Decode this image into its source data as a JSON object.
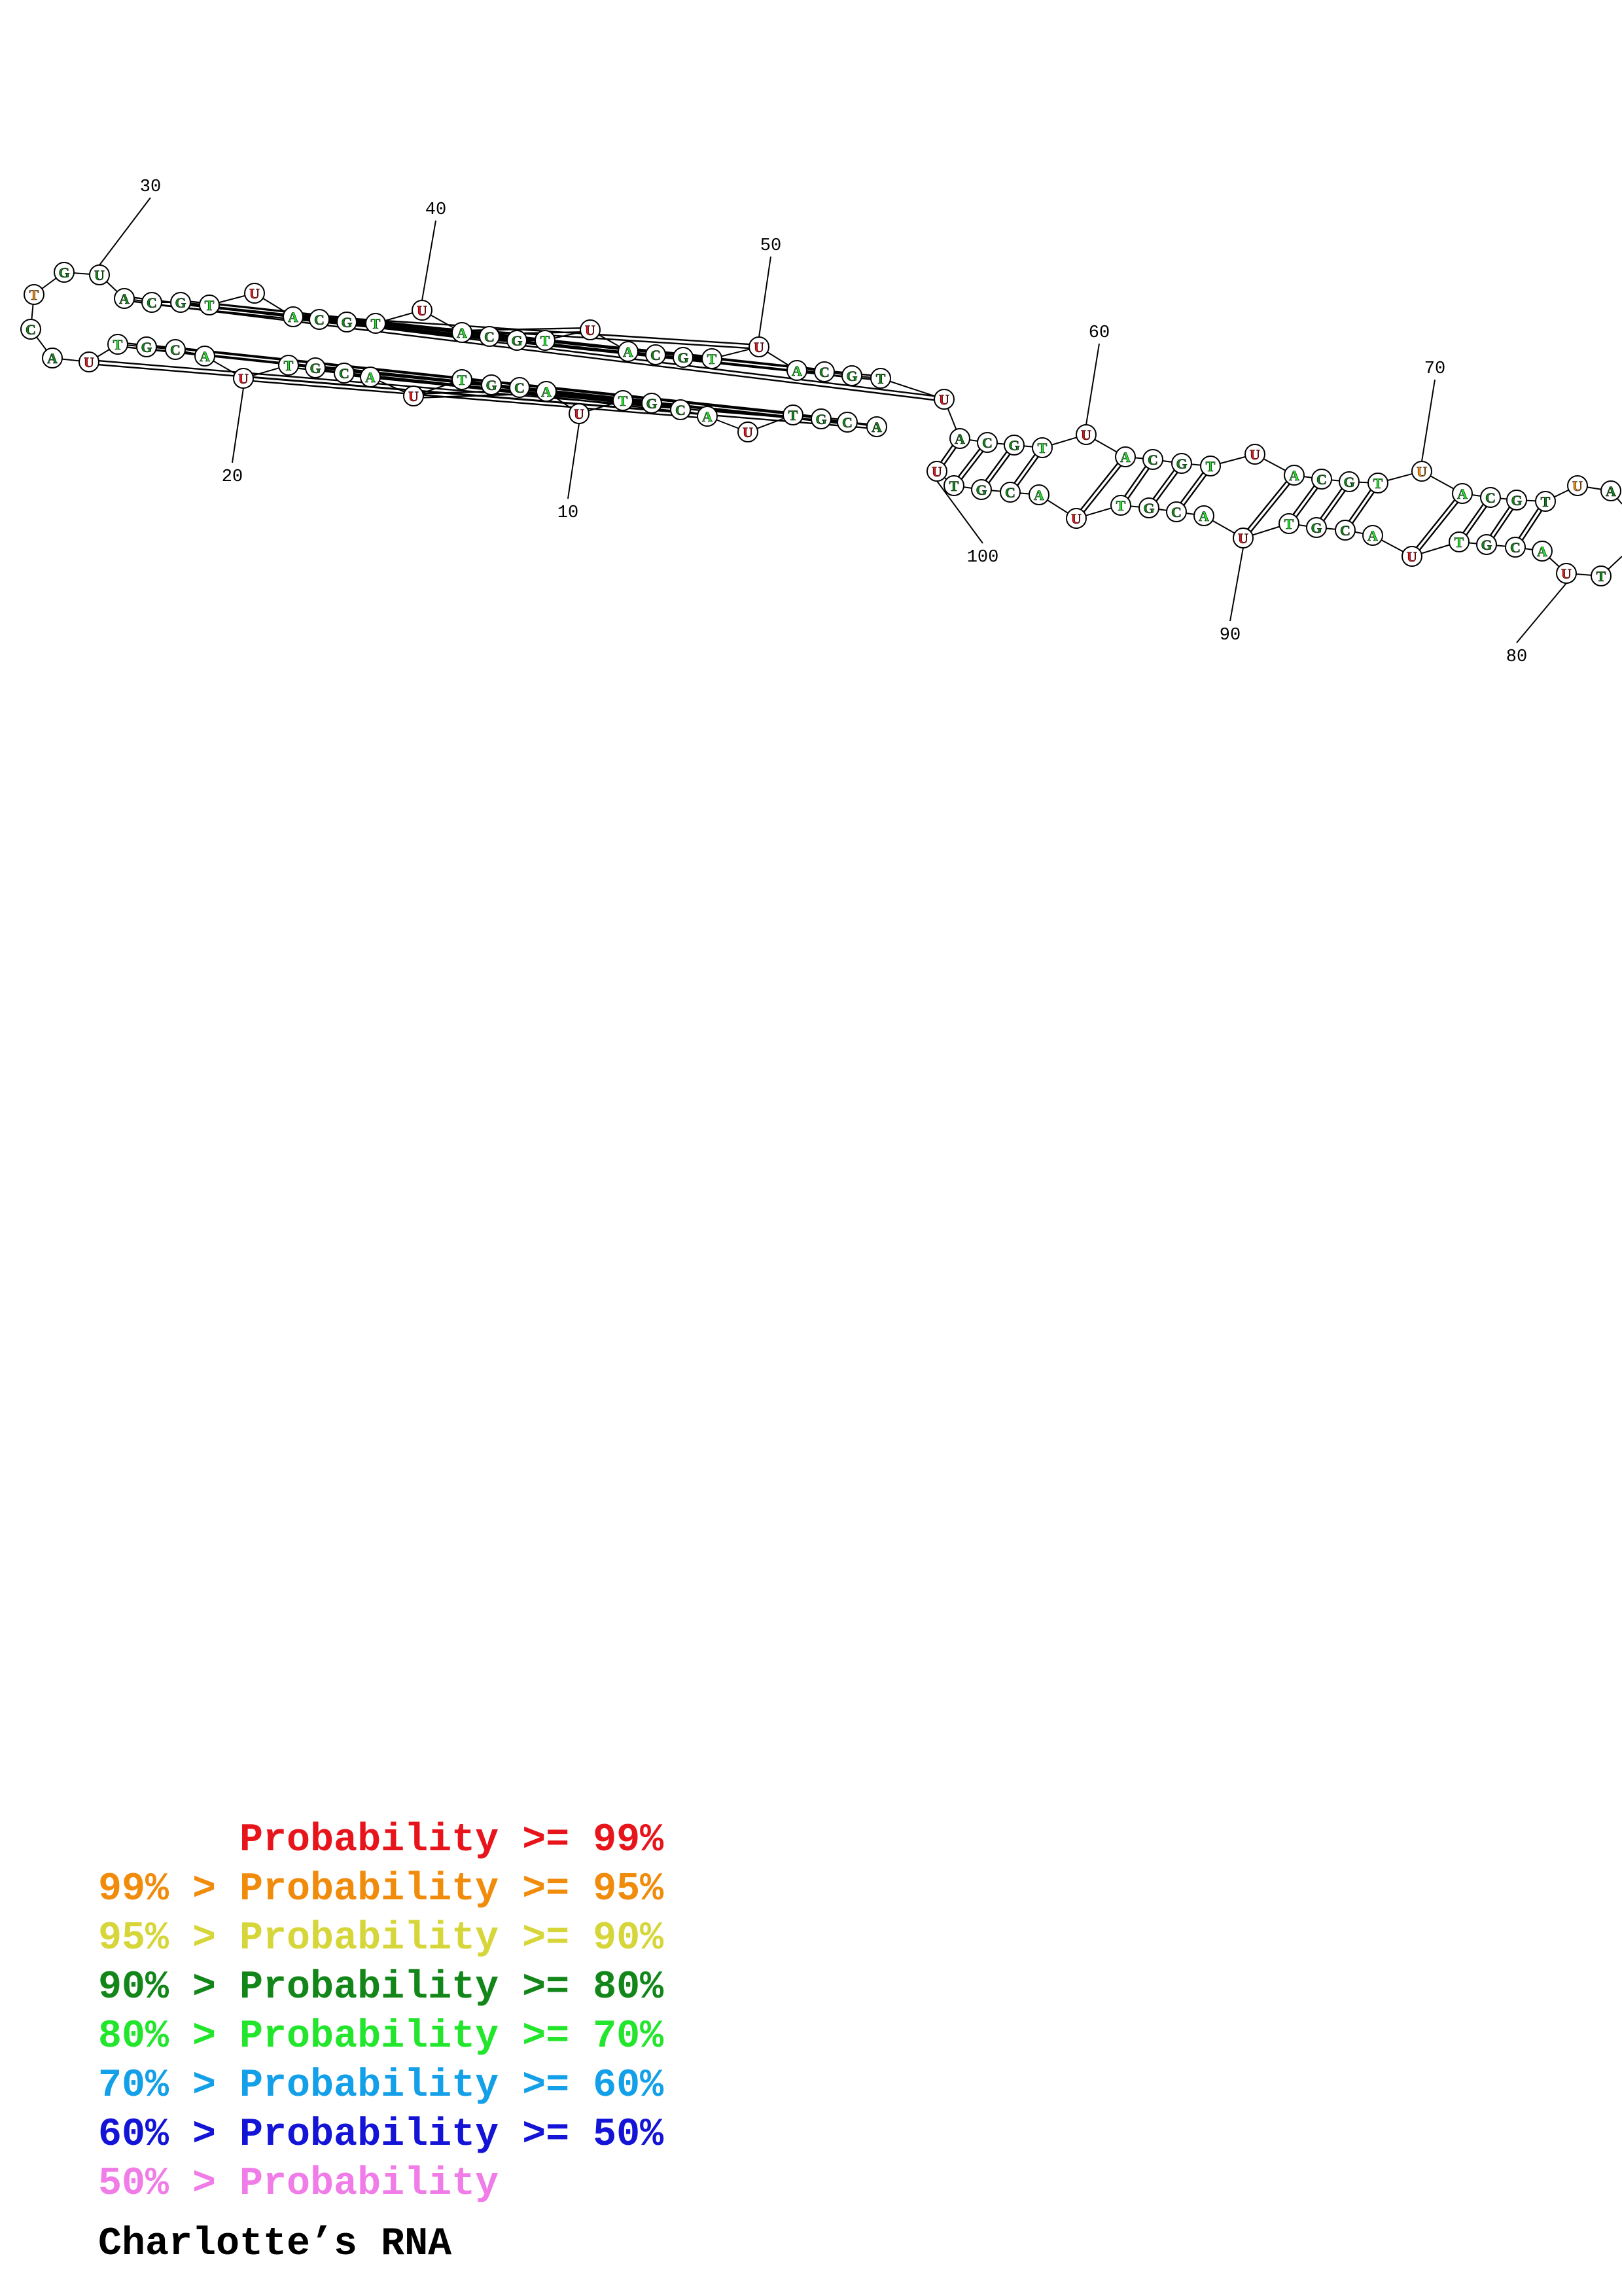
{
  "title": "Charlotte’s RNA",
  "colors": {
    "c99": "#e8141c",
    "c95": "#f08b0c",
    "c90": "#d6d63a",
    "c80": "#13861a",
    "c70": "#22e52c",
    "c60": "#14a0e8",
    "c50": "#1414d6",
    "clow": "#f07ce8"
  },
  "legend": [
    {
      "text": "      Probability >= 99%",
      "color": "c99"
    },
    {
      "text": "99% > Probability >= 95%",
      "color": "c95"
    },
    {
      "text": "95% > Probability >= 90%",
      "color": "c90"
    },
    {
      "text": "90% > Probability >= 80%",
      "color": "c80"
    },
    {
      "text": "80% > Probability >= 70%",
      "color": "c70"
    },
    {
      "text": "70% > Probability >= 60%",
      "color": "c60"
    },
    {
      "text": "60% > Probability >= 50%",
      "color": "c50"
    },
    {
      "text": "50% > Probability",
      "color": "clow"
    }
  ],
  "position_labels": [
    "10",
    "20",
    "30",
    "40",
    "50",
    "60",
    "70",
    "80",
    "90",
    "100"
  ],
  "bases": [
    {
      "n": 1,
      "b": "A",
      "c": "c80"
    },
    {
      "n": 2,
      "b": "C",
      "c": "c80"
    },
    {
      "n": 3,
      "b": "G",
      "c": "c80"
    },
    {
      "n": 4,
      "b": "T",
      "c": "c80"
    },
    {
      "n": 5,
      "b": "U",
      "c": "c99"
    },
    {
      "n": 6,
      "b": "A",
      "c": "c70"
    },
    {
      "n": 7,
      "b": "C",
      "c": "c80"
    },
    {
      "n": 8,
      "b": "G",
      "c": "c80"
    },
    {
      "n": 9,
      "b": "T",
      "c": "c70"
    },
    {
      "n": 10,
      "b": "U",
      "c": "c99"
    },
    {
      "n": 11,
      "b": "A",
      "c": "c70"
    },
    {
      "n": 12,
      "b": "C",
      "c": "c80"
    },
    {
      "n": 13,
      "b": "G",
      "c": "c80"
    },
    {
      "n": 14,
      "b": "T",
      "c": "c70"
    },
    {
      "n": 15,
      "b": "U",
      "c": "c99"
    },
    {
      "n": 16,
      "b": "A",
      "c": "c70"
    },
    {
      "n": 17,
      "b": "C",
      "c": "c80"
    },
    {
      "n": 18,
      "b": "G",
      "c": "c80"
    },
    {
      "n": 19,
      "b": "T",
      "c": "c70"
    },
    {
      "n": 20,
      "b": "U",
      "c": "c99"
    },
    {
      "n": 21,
      "b": "A",
      "c": "c70"
    },
    {
      "n": 22,
      "b": "C",
      "c": "c80"
    },
    {
      "n": 23,
      "b": "G",
      "c": "c80"
    },
    {
      "n": 24,
      "b": "T",
      "c": "c70"
    },
    {
      "n": 25,
      "b": "U",
      "c": "c99"
    },
    {
      "n": 26,
      "b": "A",
      "c": "c80"
    },
    {
      "n": 27,
      "b": "C",
      "c": "c80"
    },
    {
      "n": 28,
      "b": "T",
      "c": "c95"
    },
    {
      "n": 29,
      "b": "G",
      "c": "c80"
    },
    {
      "n": 30,
      "b": "U",
      "c": "c80"
    },
    {
      "n": 31,
      "b": "A",
      "c": "c80"
    },
    {
      "n": 32,
      "b": "C",
      "c": "c80"
    },
    {
      "n": 33,
      "b": "G",
      "c": "c80"
    },
    {
      "n": 34,
      "b": "T",
      "c": "c70"
    },
    {
      "n": 35,
      "b": "U",
      "c": "c99"
    },
    {
      "n": 36,
      "b": "A",
      "c": "c70"
    },
    {
      "n": 37,
      "b": "C",
      "c": "c80"
    },
    {
      "n": 38,
      "b": "G",
      "c": "c80"
    },
    {
      "n": 39,
      "b": "T",
      "c": "c70"
    },
    {
      "n": 40,
      "b": "U",
      "c": "c99"
    },
    {
      "n": 41,
      "b": "A",
      "c": "c70"
    },
    {
      "n": 42,
      "b": "C",
      "c": "c80"
    },
    {
      "n": 43,
      "b": "G",
      "c": "c80"
    },
    {
      "n": 44,
      "b": "T",
      "c": "c70"
    },
    {
      "n": 45,
      "b": "U",
      "c": "c99"
    },
    {
      "n": 46,
      "b": "A",
      "c": "c70"
    },
    {
      "n": 47,
      "b": "C",
      "c": "c80"
    },
    {
      "n": 48,
      "b": "G",
      "c": "c80"
    },
    {
      "n": 49,
      "b": "T",
      "c": "c70"
    },
    {
      "n": 50,
      "b": "U",
      "c": "c99"
    },
    {
      "n": 51,
      "b": "A",
      "c": "c70"
    },
    {
      "n": 52,
      "b": "C",
      "c": "c80"
    },
    {
      "n": 53,
      "b": "G",
      "c": "c80"
    },
    {
      "n": 54,
      "b": "T",
      "c": "c80"
    },
    {
      "n": 55,
      "b": "U",
      "c": "c99"
    },
    {
      "n": 56,
      "b": "A",
      "c": "c80"
    },
    {
      "n": 57,
      "b": "C",
      "c": "c80"
    },
    {
      "n": 58,
      "b": "G",
      "c": "c80"
    },
    {
      "n": 59,
      "b": "T",
      "c": "c70"
    },
    {
      "n": 60,
      "b": "U",
      "c": "c99"
    },
    {
      "n": 61,
      "b": "A",
      "c": "c70"
    },
    {
      "n": 62,
      "b": "C",
      "c": "c80"
    },
    {
      "n": 63,
      "b": "G",
      "c": "c80"
    },
    {
      "n": 64,
      "b": "T",
      "c": "c70"
    },
    {
      "n": 65,
      "b": "U",
      "c": "c99"
    },
    {
      "n": 66,
      "b": "A",
      "c": "c70"
    },
    {
      "n": 67,
      "b": "C",
      "c": "c80"
    },
    {
      "n": 68,
      "b": "G",
      "c": "c80"
    },
    {
      "n": 69,
      "b": "T",
      "c": "c70"
    },
    {
      "n": 70,
      "b": "U",
      "c": "c95"
    },
    {
      "n": 71,
      "b": "A",
      "c": "c70"
    },
    {
      "n": 72,
      "b": "C",
      "c": "c80"
    },
    {
      "n": 73,
      "b": "G",
      "c": "c80"
    },
    {
      "n": 74,
      "b": "T",
      "c": "c80"
    },
    {
      "n": 75,
      "b": "U",
      "c": "c95"
    },
    {
      "n": 76,
      "b": "A",
      "c": "c80"
    },
    {
      "n": 79,
      "b": "T",
      "c": "c80"
    },
    {
      "n": 80,
      "b": "U",
      "c": "c99"
    },
    {
      "n": 81,
      "b": "A",
      "c": "c70"
    },
    {
      "n": 82,
      "b": "C",
      "c": "c80"
    },
    {
      "n": 83,
      "b": "G",
      "c": "c80"
    },
    {
      "n": 84,
      "b": "T",
      "c": "c70"
    },
    {
      "n": 85,
      "b": "U",
      "c": "c99"
    },
    {
      "n": 86,
      "b": "A",
      "c": "c70"
    },
    {
      "n": 87,
      "b": "C",
      "c": "c80"
    },
    {
      "n": 88,
      "b": "G",
      "c": "c80"
    },
    {
      "n": 89,
      "b": "T",
      "c": "c70"
    },
    {
      "n": 90,
      "b": "U",
      "c": "c99"
    },
    {
      "n": 91,
      "b": "A",
      "c": "c70"
    },
    {
      "n": 92,
      "b": "C",
      "c": "c80"
    },
    {
      "n": 93,
      "b": "G",
      "c": "c80"
    },
    {
      "n": 94,
      "b": "T",
      "c": "c70"
    },
    {
      "n": 95,
      "b": "U",
      "c": "c99"
    },
    {
      "n": 96,
      "b": "A",
      "c": "c70"
    },
    {
      "n": 97,
      "b": "C",
      "c": "c80"
    },
    {
      "n": 98,
      "b": "G",
      "c": "c80"
    },
    {
      "n": 99,
      "b": "T",
      "c": "c80"
    },
    {
      "n": 100,
      "b": "U",
      "c": "c99"
    }
  ],
  "pairs": [
    [
      1,
      25
    ],
    [
      2,
      24
    ],
    [
      3,
      23
    ],
    [
      4,
      22
    ],
    [
      6,
      20
    ],
    [
      7,
      19
    ],
    [
      8,
      18
    ],
    [
      9,
      17
    ],
    [
      11,
      15
    ],
    [
      31,
      55
    ],
    [
      32,
      54
    ],
    [
      33,
      53
    ],
    [
      34,
      52
    ],
    [
      36,
      50
    ],
    [
      37,
      49
    ],
    [
      38,
      48
    ],
    [
      39,
      47
    ],
    [
      41,
      45
    ],
    [
      56,
      100
    ],
    [
      57,
      99
    ],
    [
      58,
      98
    ],
    [
      59,
      97
    ],
    [
      61,
      95
    ],
    [
      62,
      94
    ],
    [
      63,
      93
    ],
    [
      64,
      92
    ],
    [
      66,
      90
    ],
    [
      67,
      89
    ],
    [
      68,
      88
    ],
    [
      69,
      87
    ],
    [
      71,
      85
    ],
    [
      72,
      84
    ],
    [
      73,
      83
    ],
    [
      74,
      82
    ]
  ]
}
